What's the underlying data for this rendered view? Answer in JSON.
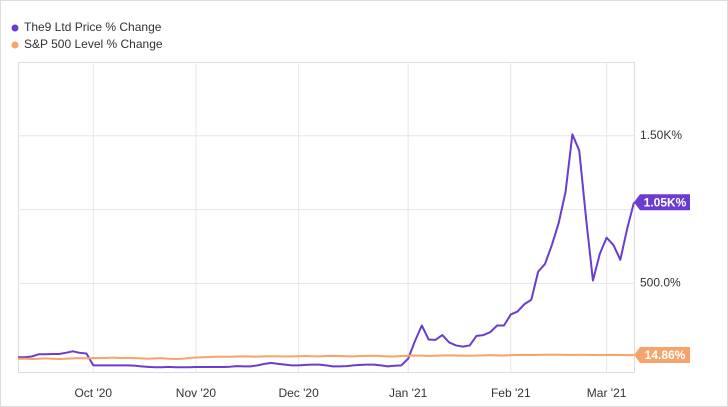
{
  "chart_data": {
    "type": "line",
    "categories": [
      null,
      null,
      null,
      null,
      null,
      null,
      null,
      null,
      null,
      null,
      null,
      "Oct '20",
      null,
      null,
      null,
      null,
      null,
      null,
      null,
      null,
      null,
      null,
      null,
      null,
      null,
      null,
      "Nov '20",
      null,
      null,
      null,
      null,
      null,
      null,
      null,
      null,
      null,
      null,
      null,
      null,
      null,
      null,
      "Dec '20",
      null,
      null,
      null,
      null,
      null,
      null,
      null,
      null,
      null,
      null,
      null,
      null,
      null,
      null,
      null,
      "Jan '21",
      null,
      null,
      null,
      null,
      null,
      null,
      null,
      null,
      null,
      null,
      null,
      null,
      null,
      null,
      "Feb '21",
      null,
      null,
      null,
      null,
      null,
      null,
      null,
      null,
      null,
      null,
      null,
      null,
      null,
      "Mar '21",
      null,
      null,
      null,
      null
    ],
    "series": [
      {
        "name": "The9 Ltd Price % Change",
        "color": "#6a3ccf",
        "end_label": "1.05K%",
        "values": [
          0,
          0,
          5,
          20,
          20,
          22,
          22,
          30,
          40,
          30,
          25,
          -55,
          -55,
          -55,
          -55,
          -55,
          -55,
          -57,
          -62,
          -65,
          -68,
          -68,
          -65,
          -68,
          -68,
          -68,
          -66,
          -66,
          -66,
          -66,
          -66,
          -64,
          -60,
          -62,
          -62,
          -55,
          -45,
          -38,
          -45,
          -50,
          -55,
          -55,
          -52,
          -50,
          -50,
          -55,
          -62,
          -62,
          -60,
          -55,
          -52,
          -50,
          -50,
          -55,
          -62,
          -58,
          -55,
          -10,
          110,
          215,
          120,
          118,
          150,
          100,
          80,
          72,
          80,
          145,
          150,
          170,
          215,
          215,
          290,
          310,
          360,
          390,
          580,
          632,
          760,
          910,
          1120,
          1510,
          1400,
          940,
          520,
          700,
          810,
          760,
          660,
          870,
          1050
        ]
      },
      {
        "name": "S&P 500 Level % Change",
        "color": "#f7a46b",
        "end_label": "14.86%",
        "values": [
          -10,
          -10,
          -12,
          -10,
          -8,
          -10,
          -12,
          -10,
          -8,
          -6,
          -8,
          -5,
          -6,
          -4,
          -3,
          -5,
          -4,
          -6,
          -8,
          -10,
          -8,
          -6,
          -10,
          -12,
          -10,
          -5,
          -2,
          0,
          2,
          3,
          4,
          3,
          5,
          6,
          5,
          4,
          6,
          7,
          6,
          5,
          6,
          7,
          8,
          7,
          6,
          8,
          9,
          8,
          7,
          6,
          8,
          9,
          10,
          8,
          6,
          5,
          8,
          10,
          12,
          11,
          9,
          10,
          12,
          13,
          12,
          11,
          10,
          12,
          13,
          14,
          13,
          12,
          14,
          15,
          16,
          15,
          16,
          17,
          18,
          17,
          16,
          15,
          17,
          16,
          15,
          14,
          15,
          16,
          15,
          14,
          14.86
        ]
      }
    ],
    "ylim": [
      -100,
      2000
    ],
    "yticks": [
      {
        "value": 500,
        "label": "500.0%"
      },
      {
        "value": 1000,
        "label": null
      },
      {
        "value": 1500,
        "label": "1.50K%"
      }
    ],
    "grid": true,
    "legend": "top-left"
  }
}
